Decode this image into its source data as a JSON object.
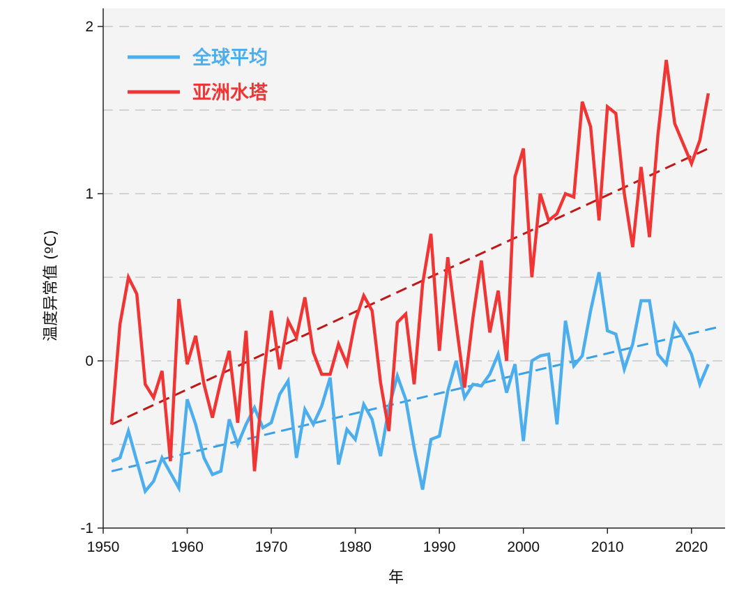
{
  "chart_data": {
    "type": "line",
    "xlabel": "年",
    "ylabel": "温度异常值 (ºC)",
    "xlim": [
      1950,
      2024
    ],
    "ylim": [
      -1,
      2.1
    ],
    "xticks": [
      1950,
      1960,
      1970,
      1980,
      1990,
      2000,
      2010,
      2020
    ],
    "xtick_labels": [
      "1950",
      "1960",
      "1970",
      "1980",
      "1990",
      "2000",
      "2010",
      "2020"
    ],
    "yticks": [
      -1,
      0,
      1,
      2
    ],
    "ytick_labels": [
      "-1",
      "0",
      "1",
      "2"
    ],
    "grid": "horizontal dashed at 0.5 intervals",
    "legend_position": "top-left",
    "x": [
      1951,
      1952,
      1953,
      1954,
      1955,
      1956,
      1957,
      1958,
      1959,
      1960,
      1961,
      1962,
      1963,
      1964,
      1965,
      1966,
      1967,
      1968,
      1969,
      1970,
      1971,
      1972,
      1973,
      1974,
      1975,
      1976,
      1977,
      1978,
      1979,
      1980,
      1981,
      1982,
      1983,
      1984,
      1985,
      1986,
      1987,
      1988,
      1989,
      1990,
      1991,
      1992,
      1993,
      1994,
      1995,
      1996,
      1997,
      1998,
      1999,
      2000,
      2001,
      2002,
      2003,
      2004,
      2005,
      2006,
      2007,
      2008,
      2009,
      2010,
      2011,
      2012,
      2013,
      2014,
      2015,
      2016,
      2017,
      2018,
      2019,
      2020,
      2021,
      2022
    ],
    "series": [
      {
        "name": "全球平均",
        "color": "#4daeee",
        "values": [
          -0.6,
          -0.58,
          -0.42,
          -0.6,
          -0.78,
          -0.72,
          -0.58,
          -0.67,
          -0.76,
          -0.23,
          -0.38,
          -0.58,
          -0.68,
          -0.66,
          -0.35,
          -0.5,
          -0.38,
          -0.28,
          -0.4,
          -0.37,
          -0.2,
          -0.12,
          -0.58,
          -0.29,
          -0.38,
          -0.27,
          -0.1,
          -0.62,
          -0.41,
          -0.47,
          -0.26,
          -0.35,
          -0.57,
          -0.28,
          -0.09,
          -0.23,
          -0.52,
          -0.77,
          -0.47,
          -0.45,
          -0.18,
          0.0,
          -0.22,
          -0.14,
          -0.15,
          -0.08,
          0.04,
          -0.19,
          -0.02,
          -0.48,
          0.0,
          0.03,
          0.04,
          -0.38,
          0.24,
          -0.03,
          0.03,
          0.3,
          0.53,
          0.18,
          0.16,
          -0.05,
          0.1,
          0.36,
          0.36,
          0.04,
          -0.02,
          0.22,
          0.14,
          0.04,
          -0.14,
          -0.02
        ]
      },
      {
        "name": "亚洲水塔",
        "color": "#f03535",
        "values": [
          -0.38,
          0.22,
          0.5,
          0.4,
          -0.14,
          -0.22,
          -0.06,
          -0.6,
          0.37,
          -0.02,
          0.15,
          -0.14,
          -0.34,
          -0.12,
          0.06,
          -0.37,
          0.18,
          -0.66,
          -0.14,
          0.3,
          -0.05,
          0.24,
          0.14,
          0.38,
          0.05,
          -0.08,
          -0.08,
          0.1,
          -0.02,
          0.24,
          0.39,
          0.3,
          -0.13,
          -0.42,
          0.23,
          0.28,
          -0.14,
          0.46,
          0.76,
          0.06,
          0.62,
          0.22,
          -0.16,
          0.26,
          0.6,
          0.17,
          0.42,
          0.0,
          1.1,
          1.27,
          0.5,
          1.0,
          0.84,
          0.88,
          1.0,
          0.98,
          1.55,
          1.4,
          0.84,
          1.52,
          1.48,
          1.0,
          0.68,
          1.16,
          0.74,
          1.35,
          1.8,
          1.42,
          1.3,
          1.18,
          1.32,
          1.6
        ]
      }
    ],
    "trendlines": [
      {
        "series": "全球平均",
        "color": "#3aa0e6",
        "x": [
          1951,
          2023
        ],
        "y": [
          -0.66,
          0.2
        ]
      },
      {
        "series": "亚洲水塔",
        "color": "#c01818",
        "x": [
          1951,
          2022
        ],
        "y": [
          -0.38,
          1.27
        ]
      }
    ],
    "plot_bg": "#f4f4f4",
    "grid_color": "#c8c8c8"
  }
}
